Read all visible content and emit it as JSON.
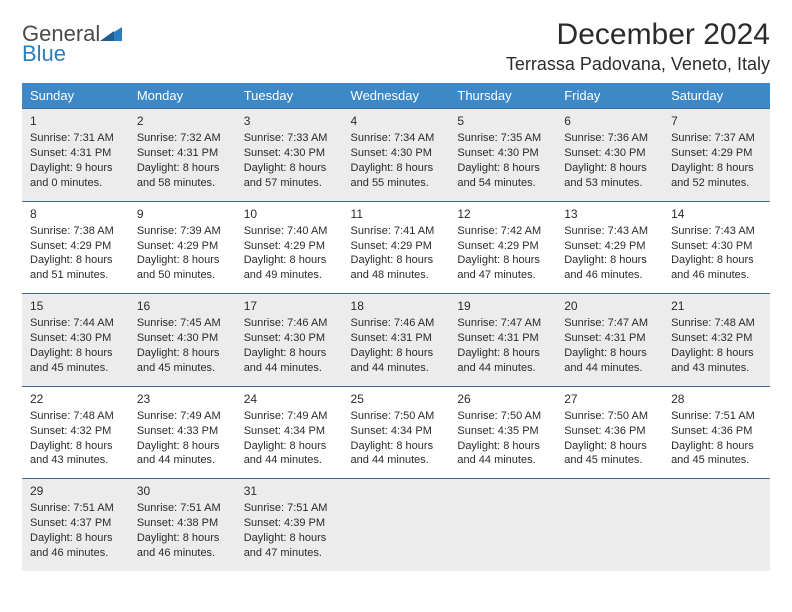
{
  "logo": {
    "word1": "General",
    "word2": "Blue"
  },
  "title": "December 2024",
  "location": "Terrassa Padovana, Veneto, Italy",
  "colors": {
    "header_bg": "#3d88c7",
    "header_text": "#ffffff",
    "shade_bg": "#ececec",
    "rule": "#3d6a94",
    "logo_blue": "#2b7fbf",
    "text": "#2b2b2b"
  },
  "day_headers": [
    "Sunday",
    "Monday",
    "Tuesday",
    "Wednesday",
    "Thursday",
    "Friday",
    "Saturday"
  ],
  "weeks": [
    [
      {
        "n": "1",
        "sr": "Sunrise: 7:31 AM",
        "ss": "Sunset: 4:31 PM",
        "d1": "Daylight: 9 hours",
        "d2": "and 0 minutes."
      },
      {
        "n": "2",
        "sr": "Sunrise: 7:32 AM",
        "ss": "Sunset: 4:31 PM",
        "d1": "Daylight: 8 hours",
        "d2": "and 58 minutes."
      },
      {
        "n": "3",
        "sr": "Sunrise: 7:33 AM",
        "ss": "Sunset: 4:30 PM",
        "d1": "Daylight: 8 hours",
        "d2": "and 57 minutes."
      },
      {
        "n": "4",
        "sr": "Sunrise: 7:34 AM",
        "ss": "Sunset: 4:30 PM",
        "d1": "Daylight: 8 hours",
        "d2": "and 55 minutes."
      },
      {
        "n": "5",
        "sr": "Sunrise: 7:35 AM",
        "ss": "Sunset: 4:30 PM",
        "d1": "Daylight: 8 hours",
        "d2": "and 54 minutes."
      },
      {
        "n": "6",
        "sr": "Sunrise: 7:36 AM",
        "ss": "Sunset: 4:30 PM",
        "d1": "Daylight: 8 hours",
        "d2": "and 53 minutes."
      },
      {
        "n": "7",
        "sr": "Sunrise: 7:37 AM",
        "ss": "Sunset: 4:29 PM",
        "d1": "Daylight: 8 hours",
        "d2": "and 52 minutes."
      }
    ],
    [
      {
        "n": "8",
        "sr": "Sunrise: 7:38 AM",
        "ss": "Sunset: 4:29 PM",
        "d1": "Daylight: 8 hours",
        "d2": "and 51 minutes."
      },
      {
        "n": "9",
        "sr": "Sunrise: 7:39 AM",
        "ss": "Sunset: 4:29 PM",
        "d1": "Daylight: 8 hours",
        "d2": "and 50 minutes."
      },
      {
        "n": "10",
        "sr": "Sunrise: 7:40 AM",
        "ss": "Sunset: 4:29 PM",
        "d1": "Daylight: 8 hours",
        "d2": "and 49 minutes."
      },
      {
        "n": "11",
        "sr": "Sunrise: 7:41 AM",
        "ss": "Sunset: 4:29 PM",
        "d1": "Daylight: 8 hours",
        "d2": "and 48 minutes."
      },
      {
        "n": "12",
        "sr": "Sunrise: 7:42 AM",
        "ss": "Sunset: 4:29 PM",
        "d1": "Daylight: 8 hours",
        "d2": "and 47 minutes."
      },
      {
        "n": "13",
        "sr": "Sunrise: 7:43 AM",
        "ss": "Sunset: 4:29 PM",
        "d1": "Daylight: 8 hours",
        "d2": "and 46 minutes."
      },
      {
        "n": "14",
        "sr": "Sunrise: 7:43 AM",
        "ss": "Sunset: 4:30 PM",
        "d1": "Daylight: 8 hours",
        "d2": "and 46 minutes."
      }
    ],
    [
      {
        "n": "15",
        "sr": "Sunrise: 7:44 AM",
        "ss": "Sunset: 4:30 PM",
        "d1": "Daylight: 8 hours",
        "d2": "and 45 minutes."
      },
      {
        "n": "16",
        "sr": "Sunrise: 7:45 AM",
        "ss": "Sunset: 4:30 PM",
        "d1": "Daylight: 8 hours",
        "d2": "and 45 minutes."
      },
      {
        "n": "17",
        "sr": "Sunrise: 7:46 AM",
        "ss": "Sunset: 4:30 PM",
        "d1": "Daylight: 8 hours",
        "d2": "and 44 minutes."
      },
      {
        "n": "18",
        "sr": "Sunrise: 7:46 AM",
        "ss": "Sunset: 4:31 PM",
        "d1": "Daylight: 8 hours",
        "d2": "and 44 minutes."
      },
      {
        "n": "19",
        "sr": "Sunrise: 7:47 AM",
        "ss": "Sunset: 4:31 PM",
        "d1": "Daylight: 8 hours",
        "d2": "and 44 minutes."
      },
      {
        "n": "20",
        "sr": "Sunrise: 7:47 AM",
        "ss": "Sunset: 4:31 PM",
        "d1": "Daylight: 8 hours",
        "d2": "and 44 minutes."
      },
      {
        "n": "21",
        "sr": "Sunrise: 7:48 AM",
        "ss": "Sunset: 4:32 PM",
        "d1": "Daylight: 8 hours",
        "d2": "and 43 minutes."
      }
    ],
    [
      {
        "n": "22",
        "sr": "Sunrise: 7:48 AM",
        "ss": "Sunset: 4:32 PM",
        "d1": "Daylight: 8 hours",
        "d2": "and 43 minutes."
      },
      {
        "n": "23",
        "sr": "Sunrise: 7:49 AM",
        "ss": "Sunset: 4:33 PM",
        "d1": "Daylight: 8 hours",
        "d2": "and 44 minutes."
      },
      {
        "n": "24",
        "sr": "Sunrise: 7:49 AM",
        "ss": "Sunset: 4:34 PM",
        "d1": "Daylight: 8 hours",
        "d2": "and 44 minutes."
      },
      {
        "n": "25",
        "sr": "Sunrise: 7:50 AM",
        "ss": "Sunset: 4:34 PM",
        "d1": "Daylight: 8 hours",
        "d2": "and 44 minutes."
      },
      {
        "n": "26",
        "sr": "Sunrise: 7:50 AM",
        "ss": "Sunset: 4:35 PM",
        "d1": "Daylight: 8 hours",
        "d2": "and 44 minutes."
      },
      {
        "n": "27",
        "sr": "Sunrise: 7:50 AM",
        "ss": "Sunset: 4:36 PM",
        "d1": "Daylight: 8 hours",
        "d2": "and 45 minutes."
      },
      {
        "n": "28",
        "sr": "Sunrise: 7:51 AM",
        "ss": "Sunset: 4:36 PM",
        "d1": "Daylight: 8 hours",
        "d2": "and 45 minutes."
      }
    ],
    [
      {
        "n": "29",
        "sr": "Sunrise: 7:51 AM",
        "ss": "Sunset: 4:37 PM",
        "d1": "Daylight: 8 hours",
        "d2": "and 46 minutes."
      },
      {
        "n": "30",
        "sr": "Sunrise: 7:51 AM",
        "ss": "Sunset: 4:38 PM",
        "d1": "Daylight: 8 hours",
        "d2": "and 46 minutes."
      },
      {
        "n": "31",
        "sr": "Sunrise: 7:51 AM",
        "ss": "Sunset: 4:39 PM",
        "d1": "Daylight: 8 hours",
        "d2": "and 47 minutes."
      },
      null,
      null,
      null,
      null
    ]
  ]
}
